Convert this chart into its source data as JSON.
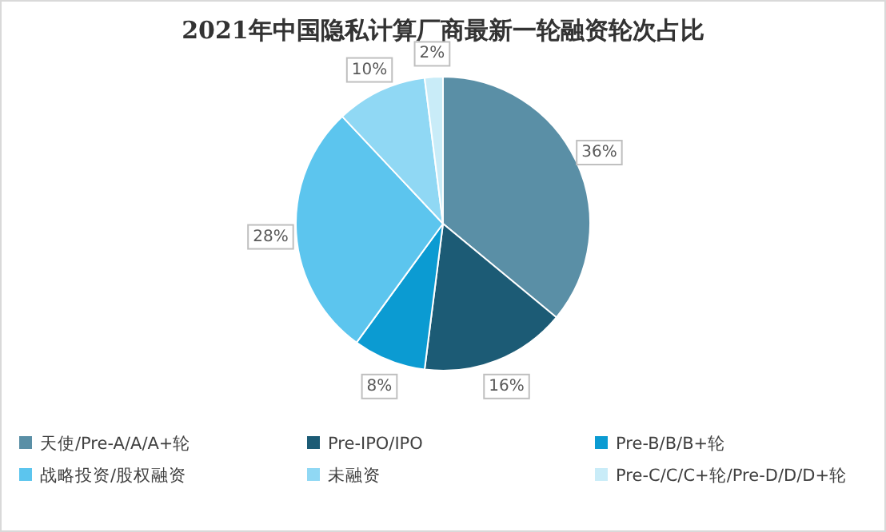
{
  "chart_data": {
    "type": "pie",
    "title": "2021年中国隐私计算厂商最新一轮融资轮次占比",
    "categories": [
      "天使/Pre-A/A/A+轮",
      "Pre-IPO/IPO",
      "Pre-B/B/B+轮",
      "战略投资/股权融资",
      "未融资",
      "Pre-C/C/C+轮/Pre-D/D/D+轮"
    ],
    "values": [
      36,
      16,
      8,
      28,
      10,
      2
    ],
    "value_labels": [
      "36%",
      "16%",
      "8%",
      "28%",
      "10%",
      "2%"
    ],
    "colors": [
      "#5a8fa6",
      "#1c5b75",
      "#0b9bd2",
      "#5cc5ee",
      "#90d8f4",
      "#c9ecf8"
    ],
    "legend": "bottom"
  }
}
